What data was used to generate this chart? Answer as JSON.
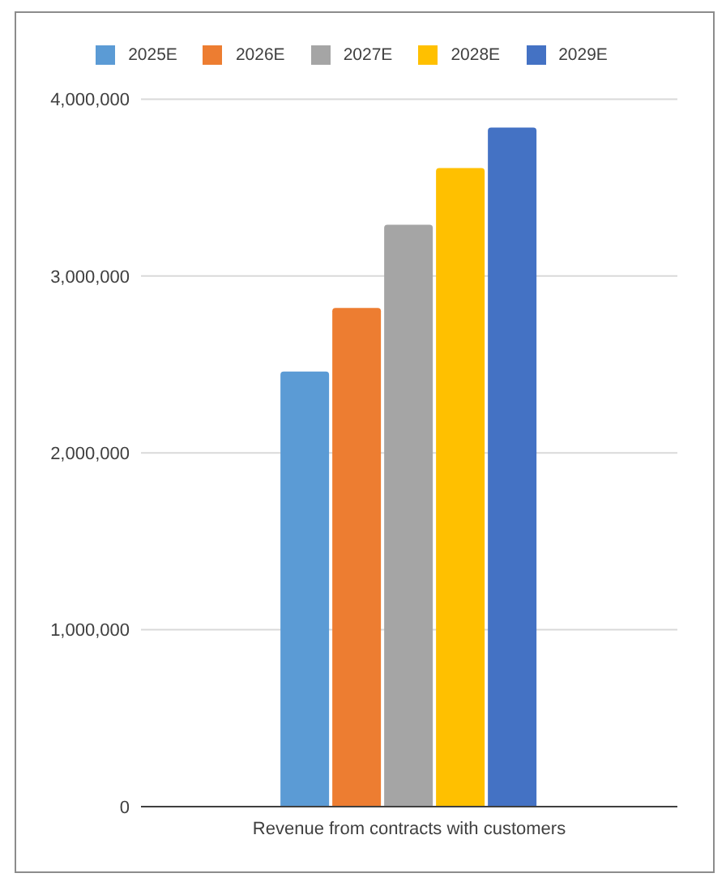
{
  "chart_data": {
    "type": "bar",
    "categories": [
      "Revenue from contracts with customers"
    ],
    "series": [
      {
        "name": "2025E",
        "color": "#5b9bd5",
        "values": [
          2460000
        ]
      },
      {
        "name": "2026E",
        "color": "#ed7d31",
        "values": [
          2820000
        ]
      },
      {
        "name": "2027E",
        "color": "#a5a5a5",
        "values": [
          3290000
        ]
      },
      {
        "name": "2028E",
        "color": "#ffc000",
        "values": [
          3610000
        ]
      },
      {
        "name": "2029E",
        "color": "#4472c4",
        "values": [
          3840000
        ]
      }
    ],
    "ylim": [
      0,
      4000000
    ],
    "yticks": [
      0,
      {
        "value": 1000000,
        "label": "1,000,000"
      },
      {
        "value": 2000000,
        "label": "2,000,000"
      },
      {
        "value": 3000000,
        "label": "3,000,000"
      },
      {
        "value": 4000000,
        "label": "4,000,000"
      }
    ],
    "grid": "y",
    "legend": "top"
  }
}
